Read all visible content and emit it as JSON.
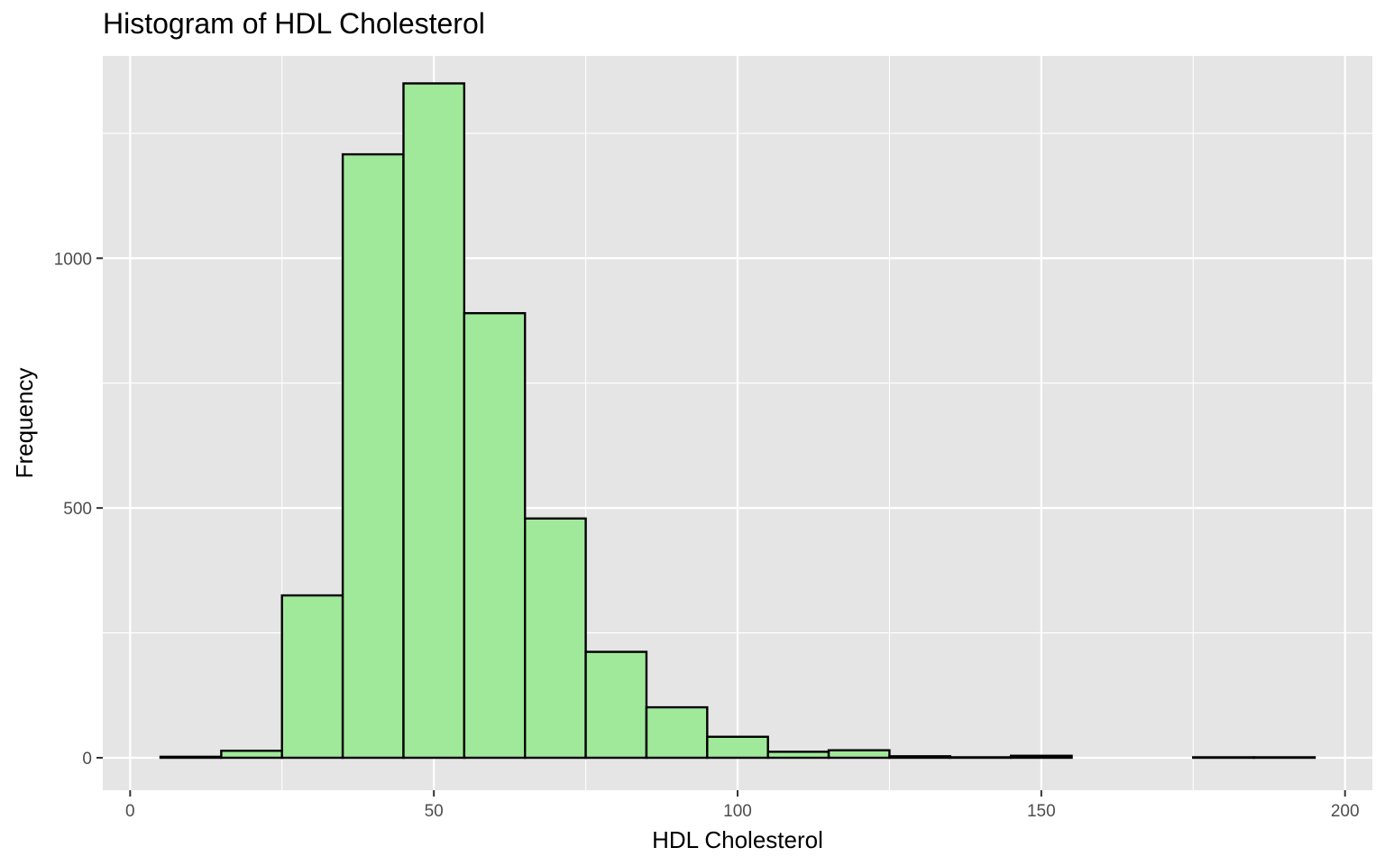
{
  "chart_data": {
    "type": "bar",
    "title": "Histogram of HDL Cholesterol",
    "xlabel": "HDL Cholesterol",
    "ylabel": "Frequency",
    "xlim": [
      -4.5,
      204.5
    ],
    "ylim": [
      -65,
      1405
    ],
    "x_ticks": [
      0,
      50,
      100,
      150,
      200
    ],
    "y_ticks": [
      0,
      500,
      1000
    ],
    "bin_width": 10,
    "bins": [
      {
        "start": 5,
        "end": 15,
        "count": 2
      },
      {
        "start": 15,
        "end": 25,
        "count": 14
      },
      {
        "start": 25,
        "end": 35,
        "count": 325
      },
      {
        "start": 35,
        "end": 45,
        "count": 1208
      },
      {
        "start": 45,
        "end": 55,
        "count": 1350
      },
      {
        "start": 55,
        "end": 65,
        "count": 890
      },
      {
        "start": 65,
        "end": 75,
        "count": 479
      },
      {
        "start": 75,
        "end": 85,
        "count": 212
      },
      {
        "start": 85,
        "end": 95,
        "count": 101
      },
      {
        "start": 95,
        "end": 105,
        "count": 42
      },
      {
        "start": 105,
        "end": 115,
        "count": 12
      },
      {
        "start": 115,
        "end": 125,
        "count": 15
      },
      {
        "start": 125,
        "end": 135,
        "count": 3
      },
      {
        "start": 135,
        "end": 145,
        "count": 1
      },
      {
        "start": 145,
        "end": 155,
        "count": 4
      },
      {
        "start": 155,
        "end": 165,
        "count": 0
      },
      {
        "start": 165,
        "end": 175,
        "count": 0
      },
      {
        "start": 175,
        "end": 185,
        "count": 1
      },
      {
        "start": 185,
        "end": 195,
        "count": 1
      }
    ],
    "grid": true,
    "colors": {
      "panel": "#e5e5e5",
      "grid_major": "#ffffff",
      "bar_fill": "#a0e99a",
      "bar_stroke": "#000000",
      "tick_text": "#4d4d4d"
    }
  }
}
